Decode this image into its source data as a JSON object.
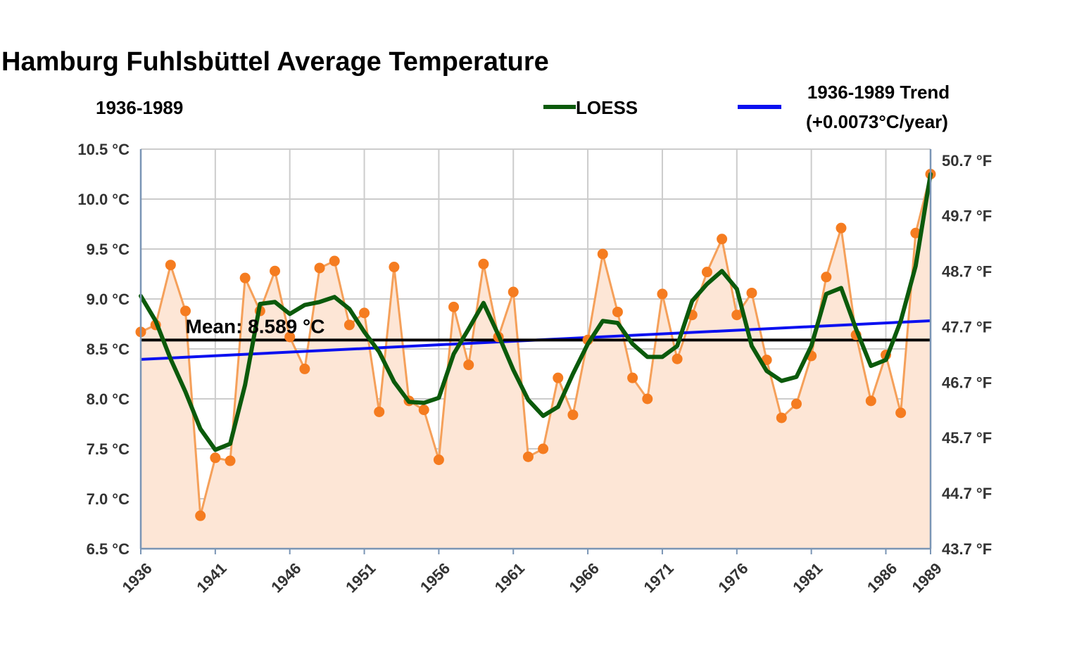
{
  "chart_data": {
    "type": "line",
    "title": "Hamburg Fuhlsbüttel Average Temperature",
    "subtitle": "1936-1989",
    "x": [
      1936,
      1937,
      1938,
      1939,
      1940,
      1941,
      1942,
      1943,
      1944,
      1945,
      1946,
      1947,
      1948,
      1949,
      1950,
      1951,
      1952,
      1953,
      1954,
      1955,
      1956,
      1957,
      1958,
      1959,
      1960,
      1961,
      1962,
      1963,
      1964,
      1965,
      1966,
      1967,
      1968,
      1969,
      1970,
      1971,
      1972,
      1973,
      1974,
      1975,
      1976,
      1977,
      1978,
      1979,
      1980,
      1981,
      1982,
      1983,
      1984,
      1985,
      1986,
      1987,
      1988,
      1989
    ],
    "series": [
      {
        "name": "",
        "kind": "points-with-area",
        "color": "#f57c20",
        "line_color": "#f5a05a",
        "fill_color": "#fde6d6",
        "values": [
          8.67,
          8.74,
          9.34,
          8.88,
          6.83,
          7.41,
          7.38,
          9.21,
          8.88,
          9.28,
          8.62,
          8.3,
          9.31,
          9.38,
          8.74,
          8.86,
          7.87,
          9.32,
          7.98,
          7.89,
          7.39,
          8.92,
          8.34,
          9.35,
          8.62,
          9.07,
          7.42,
          7.5,
          8.21,
          7.84,
          8.59,
          9.45,
          8.87,
          8.21,
          8.0,
          9.05,
          8.4,
          8.84,
          9.27,
          9.6,
          8.84,
          9.06,
          8.39,
          7.81,
          7.95,
          8.43,
          9.22,
          9.71,
          8.64,
          7.98,
          8.44,
          7.86,
          9.66,
          10.25
        ]
      },
      {
        "name": "LOESS",
        "kind": "smooth",
        "color": "#0b5a0b",
        "values": [
          9.03,
          8.78,
          8.4,
          8.07,
          7.7,
          7.49,
          7.55,
          8.14,
          8.95,
          8.97,
          8.85,
          8.94,
          8.97,
          9.02,
          8.9,
          8.67,
          8.47,
          8.17,
          7.97,
          7.96,
          8.01,
          8.45,
          8.7,
          8.96,
          8.64,
          8.29,
          7.99,
          7.83,
          7.92,
          8.25,
          8.55,
          8.78,
          8.76,
          8.55,
          8.42,
          8.42,
          8.53,
          8.98,
          9.15,
          9.28,
          9.1,
          8.53,
          8.28,
          8.18,
          8.22,
          8.53,
          9.05,
          9.11,
          8.7,
          8.33,
          8.39,
          8.78,
          9.33,
          10.25
        ]
      },
      {
        "name": "1936-1989 Trend",
        "kind": "trend",
        "color": "#0a10f0",
        "start": [
          1936,
          8.395
        ],
        "end": [
          1989,
          8.782
        ]
      }
    ],
    "mean": {
      "value": 8.589,
      "label": "Mean: 8.589 °C",
      "color": "#000000"
    },
    "legend": {
      "position": "top-right",
      "items": [
        {
          "label": "LOESS",
          "color": "#0b5a0b"
        },
        {
          "label": "1936-1989 Trend",
          "label2": "(+0.0073°C/year)",
          "color": "#0a10f0"
        }
      ]
    },
    "xlim": [
      1936,
      1989
    ],
    "xticks": [
      1936,
      1941,
      1946,
      1951,
      1956,
      1961,
      1966,
      1971,
      1976,
      1981,
      1986,
      1989
    ],
    "ylim": [
      6.5,
      10.5
    ],
    "yticks_left": [
      "6.5 °C",
      "7.0 °C",
      "7.5 °C",
      "8.0 °C",
      "8.5 °C",
      "9.0 °C",
      "9.5 °C",
      "10.0 °C",
      "10.5 °C"
    ],
    "yticks_left_values": [
      6.5,
      7.0,
      7.5,
      8.0,
      8.5,
      9.0,
      9.5,
      10.0,
      10.5
    ],
    "yticks_right": [
      "43.7 °F",
      "44.7 °F",
      "45.7 °F",
      "46.7 °F",
      "47.7 °F",
      "48.7 °F",
      "49.7 °F",
      "50.7 °F"
    ],
    "yticks_right_values_f": [
      43.7,
      44.7,
      45.7,
      46.7,
      47.7,
      48.7,
      49.7,
      50.7
    ],
    "grid": true,
    "grid_color": "#cccccc",
    "axis_color": "#7a95b5"
  }
}
